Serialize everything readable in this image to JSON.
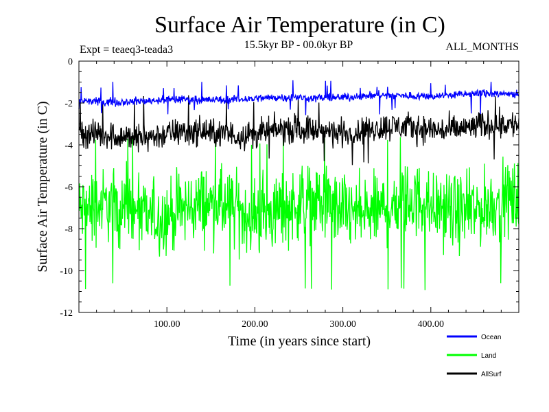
{
  "chart_data": {
    "type": "line",
    "title": "Surface Air Temperature (in C)",
    "subtitle_left": "Expt = teaeq3-teada3",
    "subtitle_center": "15.5kyr BP - 00.0kyr BP",
    "subtitle_right": "ALL_MONTHS",
    "xlabel": "Time (in years since start)",
    "ylabel": "Surface Air Temperature (in C)",
    "xlim": [
      0,
      500
    ],
    "ylim": [
      -12,
      0
    ],
    "xticks": [
      100,
      200,
      300,
      400
    ],
    "xtick_labels": [
      "100.00",
      "200.00",
      "300.00",
      "400.00"
    ],
    "yticks": [
      0,
      -2,
      -4,
      -6,
      -8,
      -10,
      -12
    ],
    "ytick_labels": [
      "0",
      "-2",
      "-4",
      "-6",
      "-8",
      "-10",
      "-12"
    ],
    "n_points": 1000,
    "series": [
      {
        "name": "Land",
        "color": "#00ff00",
        "mean_start": -7.2,
        "mean_end": -6.9,
        "noise_amplitude": 2.6,
        "lower_extreme": -11.0,
        "upper_extreme": -3.6
      },
      {
        "name": "AllSurf",
        "color": "#000000",
        "mean_start": -3.6,
        "mean_end": -3.1,
        "noise_amplitude": 1.0,
        "lower_extreme": -5.0,
        "upper_extreme": -1.6
      },
      {
        "name": "Ocean",
        "color": "#0000ff",
        "mean_start": -1.95,
        "mean_end": -1.55,
        "noise_amplitude": 0.28,
        "lower_extreme": -2.6,
        "upper_extreme": -0.9
      }
    ],
    "legend": {
      "placement": "bottom-right",
      "entries": [
        {
          "label": "Ocean",
          "color": "#0000ff"
        },
        {
          "label": "Land",
          "color": "#00ff00"
        },
        {
          "label": "AllSurf",
          "color": "#000000"
        }
      ]
    }
  }
}
